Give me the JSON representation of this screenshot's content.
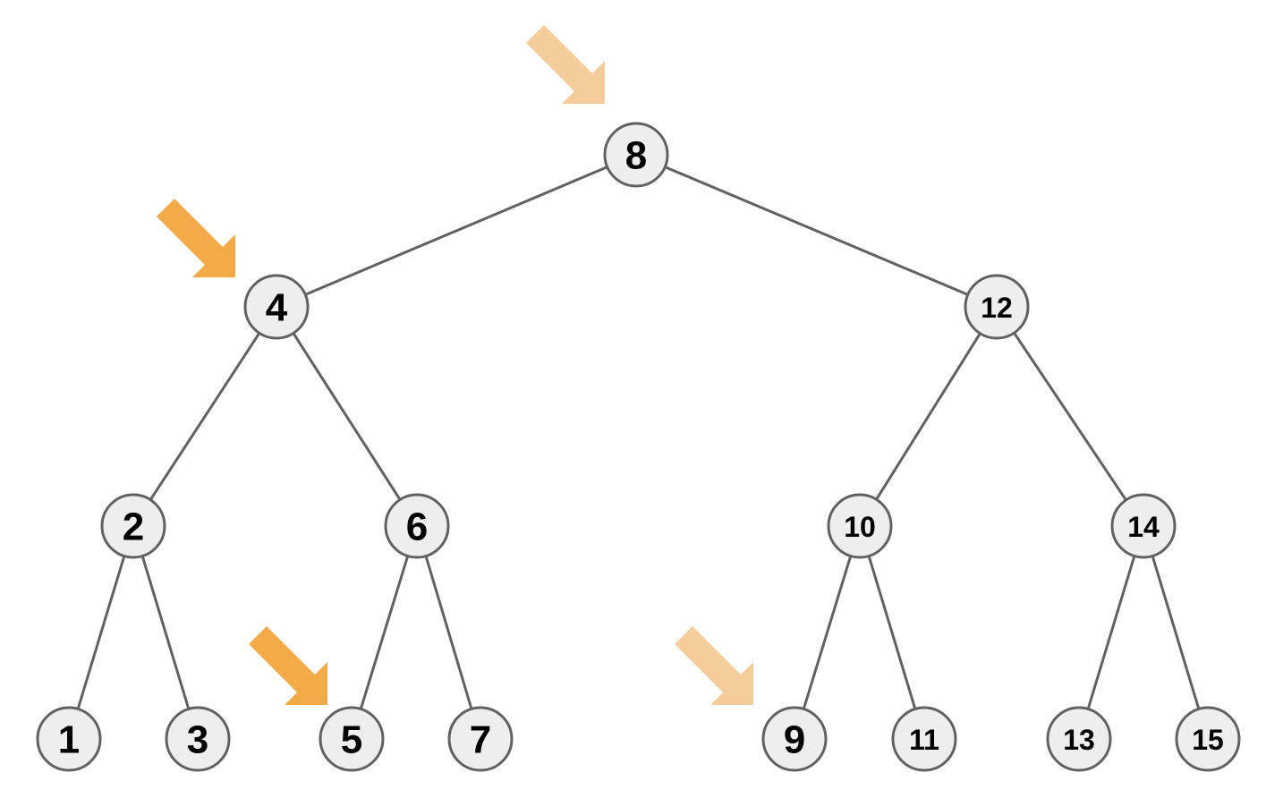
{
  "diagram": {
    "type": "binary-search-tree",
    "colors": {
      "node_fill": "#eeeeee",
      "node_stroke": "#616161",
      "edge": "#616161",
      "arrow_dark": "#f2ab48",
      "arrow_light": "#f5cd9d"
    },
    "nodes": [
      {
        "id": "8",
        "label": "8"
      },
      {
        "id": "4",
        "label": "4"
      },
      {
        "id": "12",
        "label": "12"
      },
      {
        "id": "2",
        "label": "2"
      },
      {
        "id": "6",
        "label": "6"
      },
      {
        "id": "10",
        "label": "10"
      },
      {
        "id": "14",
        "label": "14"
      },
      {
        "id": "1",
        "label": "1"
      },
      {
        "id": "3",
        "label": "3"
      },
      {
        "id": "5",
        "label": "5"
      },
      {
        "id": "7",
        "label": "7"
      },
      {
        "id": "9",
        "label": "9"
      },
      {
        "id": "11",
        "label": "11"
      },
      {
        "id": "13",
        "label": "13"
      },
      {
        "id": "15",
        "label": "15"
      }
    ],
    "edges": [
      {
        "from": "8",
        "to": "4"
      },
      {
        "from": "8",
        "to": "12"
      },
      {
        "from": "4",
        "to": "2"
      },
      {
        "from": "4",
        "to": "6"
      },
      {
        "from": "12",
        "to": "10"
      },
      {
        "from": "12",
        "to": "14"
      },
      {
        "from": "2",
        "to": "1"
      },
      {
        "from": "2",
        "to": "3"
      },
      {
        "from": "6",
        "to": "5"
      },
      {
        "from": "6",
        "to": "7"
      },
      {
        "from": "10",
        "to": "9"
      },
      {
        "from": "10",
        "to": "11"
      },
      {
        "from": "14",
        "to": "13"
      },
      {
        "from": "14",
        "to": "15"
      }
    ],
    "arrows": [
      {
        "points_to": "8",
        "shade": "light"
      },
      {
        "points_to": "4",
        "shade": "dark"
      },
      {
        "points_to": "5",
        "shade": "dark"
      },
      {
        "points_to": "9",
        "shade": "light"
      }
    ]
  }
}
